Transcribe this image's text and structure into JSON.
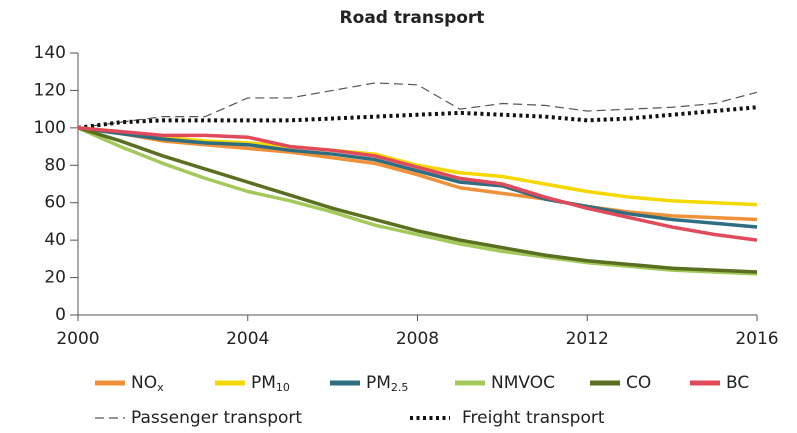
{
  "chart_data": {
    "type": "line",
    "title": "Road transport",
    "x": [
      2000,
      2001,
      2002,
      2003,
      2004,
      2005,
      2006,
      2007,
      2008,
      2009,
      2010,
      2011,
      2012,
      2013,
      2014,
      2015,
      2016
    ],
    "xlim": [
      2000,
      2016
    ],
    "xticks": [
      2000,
      2004,
      2008,
      2012,
      2016
    ],
    "ylim": [
      0,
      140
    ],
    "yticks": [
      0,
      20,
      40,
      60,
      80,
      100,
      120,
      140
    ],
    "grid": false,
    "series": [
      {
        "name": "NO",
        "subscript": "x",
        "color": "#f0913a",
        "style": "solid",
        "values": [
          100,
          97,
          93,
          91,
          89,
          87,
          84,
          81,
          75,
          68,
          65,
          62,
          58,
          55,
          53,
          52,
          51
        ]
      },
      {
        "name": "PM",
        "subscript": "10",
        "color": "#f5d800",
        "style": "solid",
        "values": [
          100,
          98,
          95,
          93,
          92,
          90,
          88,
          86,
          80,
          76,
          74,
          70,
          66,
          63,
          61,
          60,
          59
        ]
      },
      {
        "name": "PM",
        "subscript": "2.5",
        "color": "#2e6e80",
        "style": "solid",
        "values": [
          100,
          97,
          94,
          92,
          91,
          88,
          86,
          83,
          77,
          71,
          69,
          62,
          58,
          54,
          51,
          49,
          47
        ]
      },
      {
        "name": "NMVOC",
        "color": "#a3c95a",
        "style": "solid",
        "values": [
          100,
          90,
          81,
          73,
          66,
          61,
          55,
          48,
          43,
          38,
          34,
          31,
          28,
          26,
          24,
          23,
          22
        ]
      },
      {
        "name": "CO",
        "color": "#5a7020",
        "style": "solid",
        "values": [
          100,
          93,
          85,
          78,
          71,
          64,
          57,
          51,
          45,
          40,
          36,
          32,
          29,
          27,
          25,
          24,
          23
        ]
      },
      {
        "name": "BC",
        "color": "#e04a5a",
        "style": "solid",
        "values": [
          100,
          98,
          96,
          96,
          95,
          90,
          88,
          85,
          79,
          73,
          70,
          63,
          57,
          52,
          47,
          43,
          40
        ]
      },
      {
        "name": "Passenger transport",
        "color": "#555555",
        "style": "dashed",
        "values": [
          100,
          103,
          106,
          106,
          116,
          116,
          120,
          124,
          123,
          110,
          113,
          112,
          109,
          110,
          111,
          113,
          119
        ]
      },
      {
        "name": "Freight transport",
        "color": "#111111",
        "style": "dotted",
        "values": [
          100,
          103,
          104,
          104,
          104,
          104,
          105,
          106,
          107,
          108,
          107,
          106,
          104,
          105,
          107,
          109,
          111
        ]
      }
    ]
  }
}
